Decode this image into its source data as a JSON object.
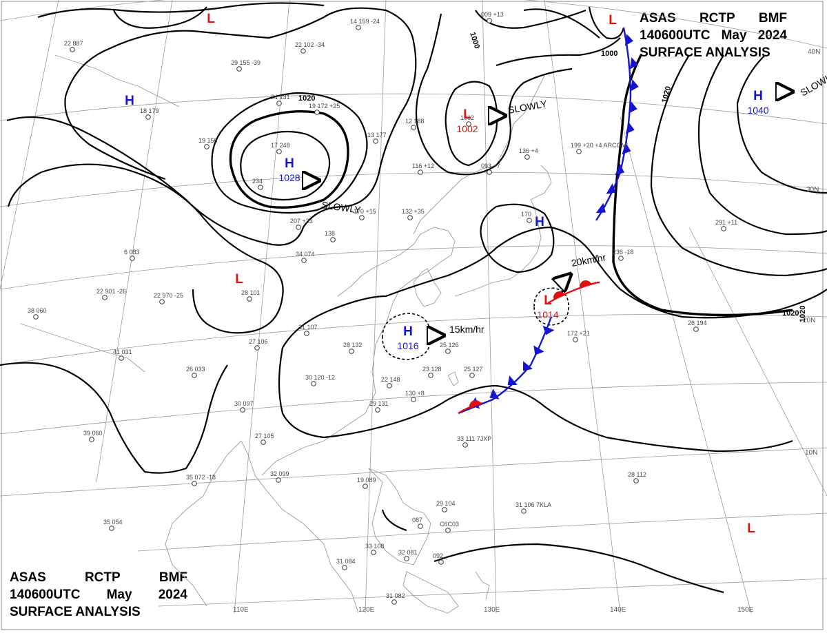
{
  "header": {
    "line1": [
      "ASAS",
      "RCTP",
      "BMF"
    ],
    "line2": [
      "140600UTC",
      "May",
      "2024"
    ],
    "line3": "SURFACE ANALYSIS"
  },
  "colors": {
    "high": "#1515d0",
    "low": "#e01010",
    "cold_front": "#1515d0",
    "warm_front": "#e01010",
    "isobar": "#000000",
    "grid": "#9a9a9a"
  },
  "pressure_centers": [
    {
      "type": "H",
      "value": "1028"
    },
    {
      "type": "H",
      "value": "1016"
    },
    {
      "type": "H",
      "value": "1040"
    },
    {
      "type": "H",
      "value": ""
    },
    {
      "type": "H",
      "value": ""
    },
    {
      "type": "L",
      "value": "1002"
    },
    {
      "type": "L",
      "value": "1014"
    },
    {
      "type": "L",
      "value": ""
    },
    {
      "type": "L",
      "value": ""
    },
    {
      "type": "L",
      "value": ""
    },
    {
      "type": "L",
      "value": ""
    }
  ],
  "motion_labels": [
    "SLOWLY",
    "SLOWLY",
    "SLOWLY",
    "15km/hr",
    "20km/hr"
  ],
  "isobar_labels": [
    "1000",
    "1000",
    "1020",
    "1020",
    "1020",
    "1020"
  ],
  "longitude_labels": [
    "110E",
    "120E",
    "130E",
    "140E",
    "150E"
  ],
  "latitude_labels": [
    "40N",
    "30N",
    "20N",
    "10N"
  ],
  "station_plots": [
    "22 887",
    "29 155 -39",
    "22 102 -34",
    "14 159 -24",
    "009 +13",
    "18 179",
    "24 131",
    "19 172 +25",
    "12 188",
    "1002",
    "136 +4",
    "19 156",
    "17 248",
    "13 177",
    "116 +12",
    "093 +7",
    "199 +20 +4 ARCGM",
    "234",
    "207 +23",
    "170 +15",
    "132 +35",
    "170",
    "138",
    "6 083",
    "34 074",
    "22 901 -26",
    "22 970 -25",
    "28 101",
    "236 -18",
    "291 +11",
    "38 060",
    "31 107",
    "27 106",
    "28 132",
    "25 126",
    "41 031",
    "26 033",
    "30 120 -12",
    "22 148",
    "23 128",
    "25 127",
    "172 +21",
    "26 194",
    "30 097",
    "29 131",
    "130 +8",
    "27 105",
    "39 060",
    "33 111 7JXP",
    "35 072 -18",
    "32 099",
    "19 089",
    "29 104",
    "31 106 7KLA",
    "087",
    "C6C03",
    "28 112",
    "35 054",
    "33 108",
    "32 081",
    "092",
    "31 084",
    "31 082"
  ]
}
